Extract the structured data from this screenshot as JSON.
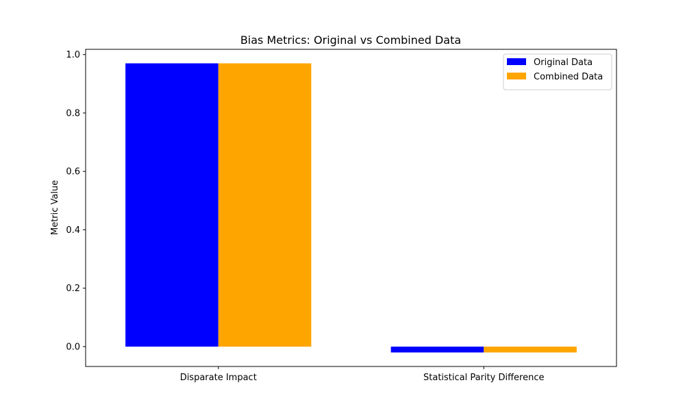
{
  "chart_data": {
    "type": "bar",
    "title": "Bias Metrics: Original vs Combined Data",
    "xlabel": "",
    "ylabel": "Metric Value",
    "categories": [
      "Disparate Impact",
      "Statistical Parity Difference"
    ],
    "series": [
      {
        "name": "Original Data",
        "color": "#0000ff",
        "values": [
          0.97,
          -0.02
        ]
      },
      {
        "name": "Combined Data",
        "color": "#ffa500",
        "values": [
          0.97,
          -0.02
        ]
      }
    ],
    "ylim": [
      -0.068,
      1.018
    ],
    "yticks": [
      0.0,
      0.2,
      0.4,
      0.6,
      0.8,
      1.0
    ],
    "ytick_labels": [
      "0.0",
      "0.2",
      "0.4",
      "0.6",
      "0.8",
      "1.0"
    ],
    "grid": false,
    "legend_position": "top-right"
  }
}
